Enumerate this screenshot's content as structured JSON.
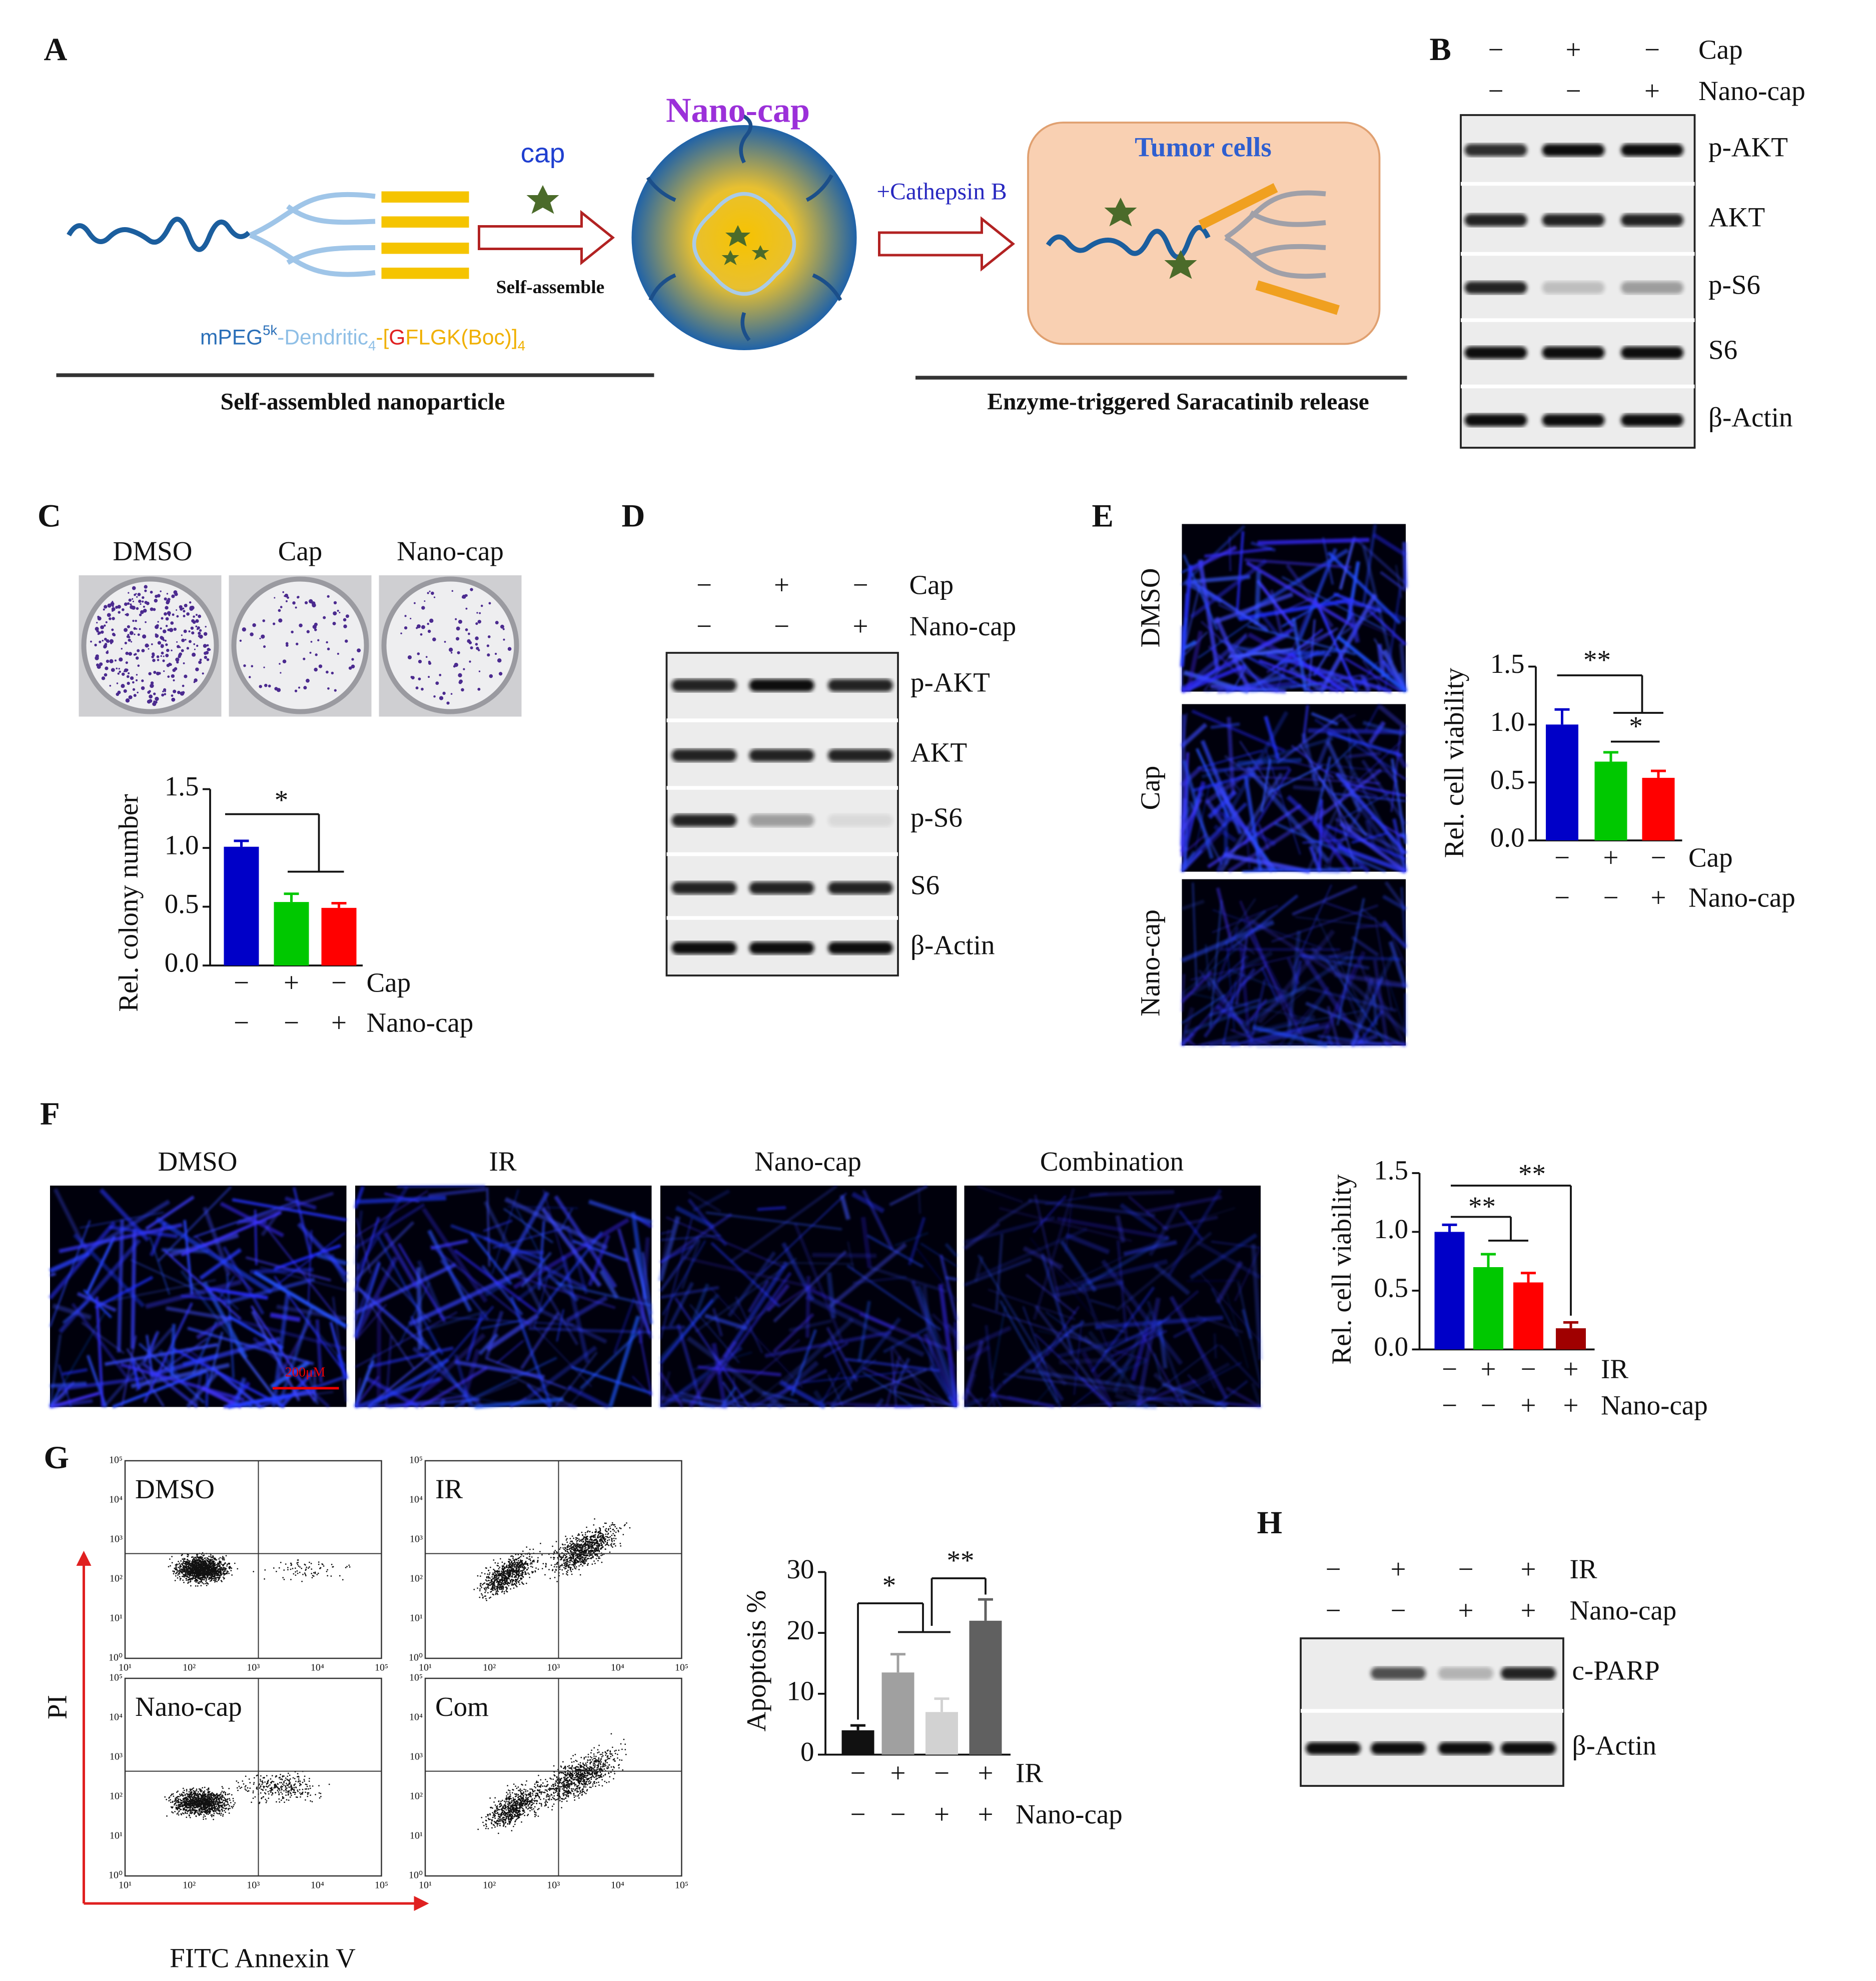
{
  "panel_labels": [
    "A",
    "B",
    "C",
    "D",
    "E",
    "F",
    "G",
    "H"
  ],
  "panel_a": {
    "cap": "cap",
    "nanoparticle": "Nano-cap",
    "enzyme": "+Cathepsin B",
    "tumor": "Tumor cells",
    "step": "Self-assemble",
    "formula": [
      "mPEG",
      "5k",
      "-Dendritic",
      "4",
      "-[",
      "G",
      "FLGK(Boc)]",
      "4"
    ],
    "left_caption": "Self-assembled nanoparticle",
    "right_caption": "Enzyme-triggered Saracatinib release"
  },
  "blots": [
    {
      "conditions": [
        {
          "name": "Cap",
          "signs": [
            "−",
            "+",
            "−"
          ]
        },
        {
          "name": "Nano-cap",
          "signs": [
            "−",
            "−",
            "+"
          ]
        }
      ],
      "bands": [
        "p-AKT",
        "AKT",
        "p-S6",
        "S6",
        "β-Actin"
      ]
    },
    {
      "conditions": [
        {
          "name": "Cap",
          "signs": [
            "−",
            "+",
            "−"
          ]
        },
        {
          "name": "Nano-cap",
          "signs": [
            "−",
            "−",
            "+"
          ]
        }
      ],
      "bands": [
        "p-AKT",
        "AKT",
        "p-S6",
        "S6",
        "β-Actin"
      ]
    },
    {
      "conditions": [
        {
          "name": "IR",
          "signs": [
            "−",
            "+",
            "−",
            "+"
          ]
        },
        {
          "name": "Nano-cap",
          "signs": [
            "−",
            "−",
            "+",
            "+"
          ]
        }
      ],
      "bands": [
        "c-PARP",
        "β-Actin"
      ]
    }
  ],
  "colony_images": {
    "labels": [
      "DMSO",
      "Cap",
      "Nano-cap"
    ]
  },
  "e_images": {
    "labels": [
      "DMSO",
      "Cap",
      "Nano-cap"
    ]
  },
  "f_images": {
    "labels": [
      "DMSO",
      "IR",
      "Nano-cap",
      "Combination"
    ],
    "scale_bar": "200μM"
  },
  "flow": {
    "labels": [
      "DMSO",
      "IR",
      "Nano-cap",
      "Com"
    ],
    "ylabel": "PI",
    "xlabel": "FITC Annexin V",
    "xticks": [
      "10¹",
      "10²",
      "10³",
      "10⁴",
      "10⁵"
    ],
    "yticks": [
      "10⁰",
      "10¹",
      "10²",
      "10³",
      "10⁴",
      "10⁵"
    ]
  },
  "chart_data": [
    {
      "type": "bar",
      "ylabel": "Rel. colony number",
      "ylim": [
        0,
        1.5
      ],
      "yticks": [
        {
          "value": 0,
          "label": "0.0"
        },
        {
          "value": 0.5,
          "label": "0.5"
        },
        {
          "value": 1,
          "label": "1.0"
        },
        {
          "value": 1.5,
          "label": "1.5"
        }
      ],
      "values": [
        1.01,
        0.54,
        0.49
      ],
      "errors": [
        0.05,
        0.07,
        0.04
      ],
      "colors": [
        "#0000c8",
        "#00c800",
        "#ff0000"
      ],
      "conditions": [
        {
          "name": "Cap",
          "signs": [
            "−",
            "+",
            "−"
          ]
        },
        {
          "name": "Nano-cap",
          "signs": [
            "−",
            "−",
            "+"
          ]
        }
      ],
      "significance": [
        "*"
      ]
    },
    {
      "type": "bar",
      "ylabel": "Rel. cell viability",
      "ylim": [
        0,
        1.5
      ],
      "yticks": [
        {
          "value": 0,
          "label": "0.0"
        },
        {
          "value": 0.5,
          "label": "0.5"
        },
        {
          "value": 1,
          "label": "1.0"
        },
        {
          "value": 1.5,
          "label": "1.5"
        }
      ],
      "values": [
        1.0,
        0.68,
        0.54
      ],
      "errors": [
        0.13,
        0.08,
        0.06
      ],
      "colors": [
        "#0000c8",
        "#00c800",
        "#ff0000"
      ],
      "conditions": [
        {
          "name": "Cap",
          "signs": [
            "−",
            "+",
            "−"
          ]
        },
        {
          "name": "Nano-cap",
          "signs": [
            "−",
            "−",
            "+"
          ]
        }
      ],
      "significance": [
        "**",
        "*"
      ]
    },
    {
      "type": "bar",
      "ylabel": "Rel. cell viability",
      "ylim": [
        0,
        1.5
      ],
      "yticks": [
        {
          "value": 0,
          "label": "0.0"
        },
        {
          "value": 0.5,
          "label": "0.5"
        },
        {
          "value": 1,
          "label": "1.0"
        },
        {
          "value": 1.5,
          "label": "1.5"
        }
      ],
      "values": [
        1.0,
        0.7,
        0.57,
        0.18
      ],
      "errors": [
        0.06,
        0.11,
        0.08,
        0.05
      ],
      "colors": [
        "#0000c8",
        "#00c800",
        "#ff0000",
        "#a00000"
      ],
      "conditions": [
        {
          "name": "IR",
          "signs": [
            "−",
            "+",
            "−",
            "+"
          ]
        },
        {
          "name": "Nano-cap",
          "signs": [
            "−",
            "−",
            "+",
            "+"
          ]
        }
      ],
      "significance": [
        "**",
        "**"
      ]
    },
    {
      "type": "bar",
      "ylabel": "Apoptosis %",
      "ylim": [
        0,
        30
      ],
      "yticks": [
        0,
        10,
        20,
        30
      ],
      "values": [
        4,
        13.5,
        7,
        22
      ],
      "errors": [
        0.8,
        3,
        2.2,
        3.5
      ],
      "colors": [
        "#111111",
        "#a0a0a0",
        "#d2d2d2",
        "#606060"
      ],
      "conditions": [
        {
          "name": "IR",
          "signs": [
            "−",
            "+",
            "−",
            "+"
          ]
        },
        {
          "name": "Nano-cap",
          "signs": [
            "−",
            "−",
            "+",
            "+"
          ]
        }
      ],
      "significance": [
        "*",
        "**"
      ]
    }
  ]
}
